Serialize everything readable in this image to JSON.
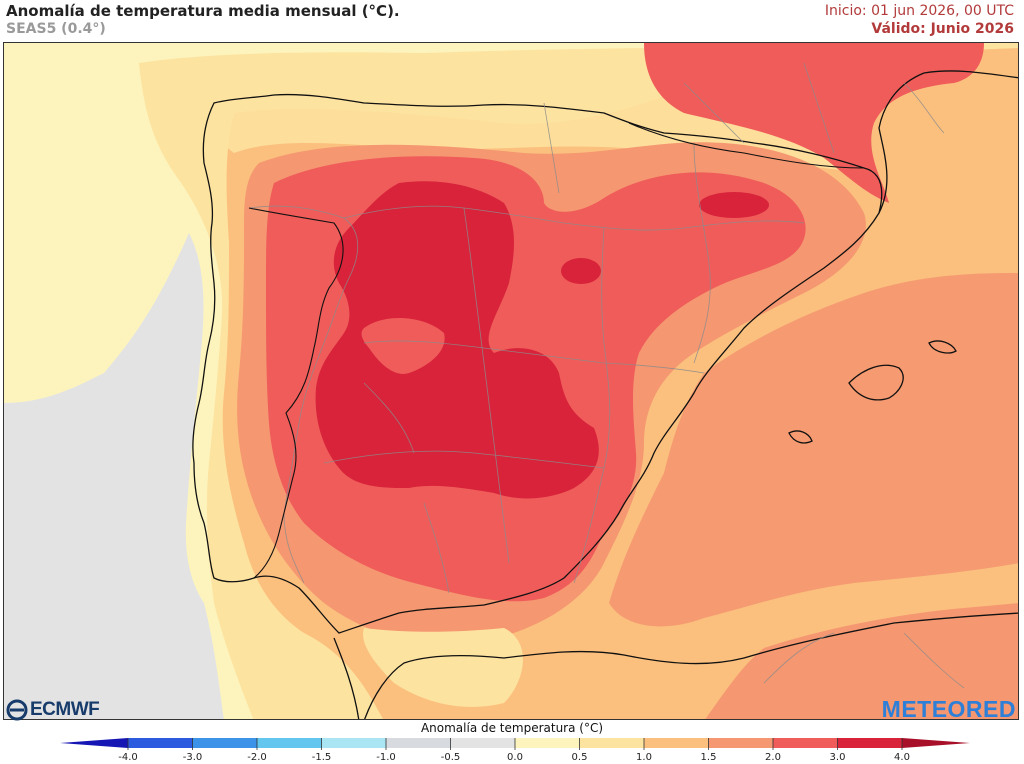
{
  "header": {
    "title": "Anomalía de temperatura media mensual (°C).",
    "subtitle": "SEAS5 (0.4°)",
    "init": "Inicio: 01 jun 2026, 00 UTC",
    "valid": "Válido: Junio 2026"
  },
  "logos": {
    "ecmwf": "ECMWF",
    "meteored": "METEORED"
  },
  "legend": {
    "title": "Anomalía de temperatura (°C)",
    "ticks": [
      "-4.0",
      "-3.0",
      "-2.0",
      "-1.5",
      "-1.0",
      "-0.5",
      "0.0",
      "0.5",
      "1.0",
      "1.5",
      "2.0",
      "3.0",
      "4.0"
    ],
    "colors": [
      "#1e22c8",
      "#2d5be0",
      "#3c93e8",
      "#62c6ee",
      "#a9e5f3",
      "#d7dbe0",
      "#e3e3e3",
      "#fdf4bd",
      "#fde3a0",
      "#fbc07e",
      "#f59770",
      "#ef5c5a",
      "#d8233a"
    ],
    "low_arrow_color": "#1616b4",
    "high_arrow_color": "#a8102a"
  },
  "map": {
    "sea_color": "#fdf4bd",
    "no_data_color": "#e3e3e3",
    "border_color": "#8c8c8c",
    "coast_color": "#111111"
  }
}
